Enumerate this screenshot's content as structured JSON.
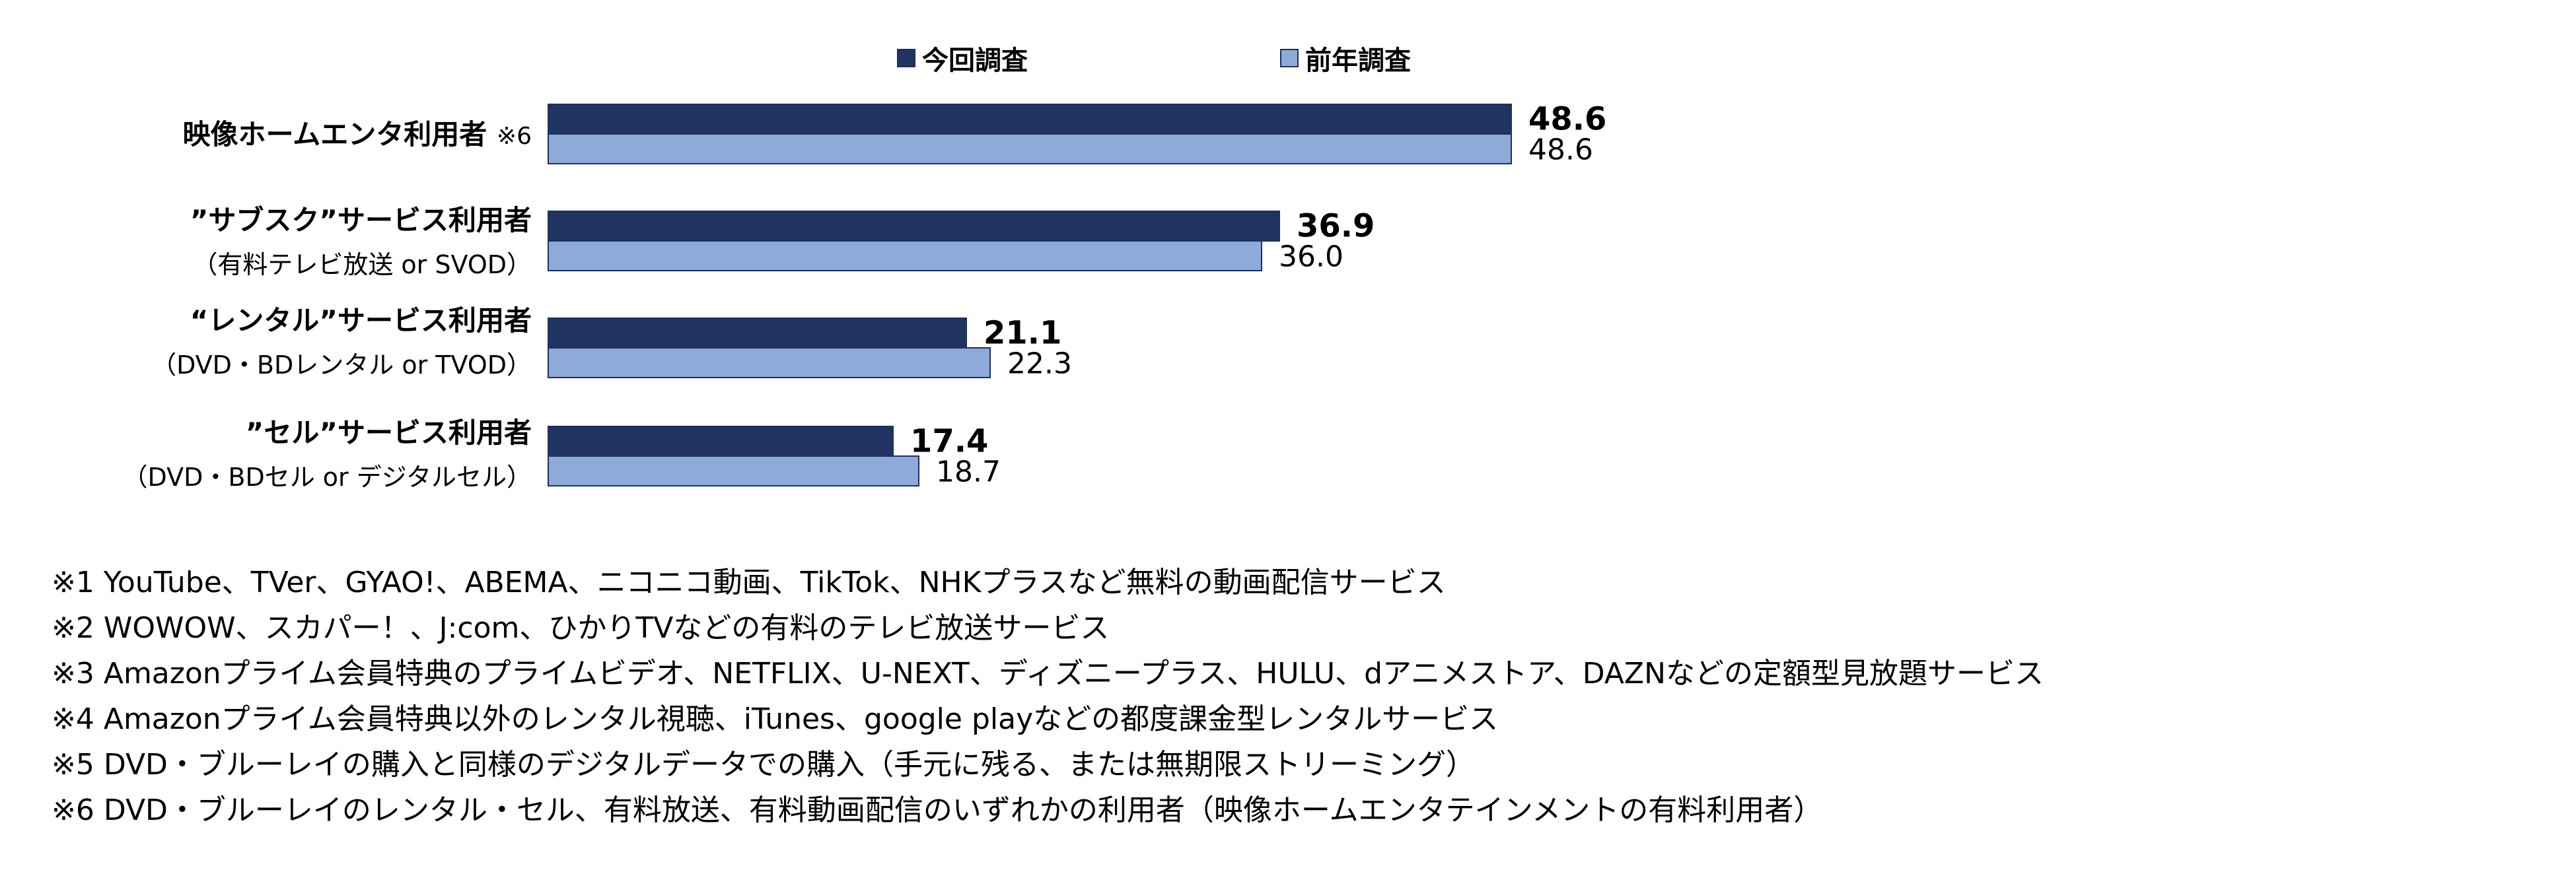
{
  "legend": {
    "current": {
      "label": "今回調査",
      "color": "#1f3461"
    },
    "previous": {
      "label": "前年調査",
      "color": "#8eaadb"
    }
  },
  "categories": [
    {
      "name": "映像ホームエンタ利用者",
      "note": "※6",
      "sub": ""
    },
    {
      "name": "”サブスク”サービス利用者",
      "note": "",
      "sub": "（有料テレビ放送 or SVOD）"
    },
    {
      "name": "“レンタル”サービス利用者",
      "note": "",
      "sub": "（DVD・BDレンタル or TVOD）"
    },
    {
      "name": "”セル”サービス利用者",
      "note": "",
      "sub": "（DVD・BDセル or デジタルセル）"
    }
  ],
  "chart_data": {
    "type": "bar",
    "orientation": "horizontal",
    "categories": [
      "映像ホームエンタ利用者",
      "”サブスク”サービス利用者",
      "“レンタル”サービス利用者",
      "”セル”サービス利用者"
    ],
    "series": [
      {
        "name": "今回調査",
        "values": [
          48.6,
          36.9,
          21.1,
          17.4
        ],
        "labels": [
          "48.6",
          "36.9",
          "21.1",
          "17.4"
        ]
      },
      {
        "name": "前年調査",
        "values": [
          48.6,
          36.0,
          22.3,
          18.7
        ],
        "labels": [
          "48.6",
          "36.0",
          "22.3",
          "18.7"
        ]
      }
    ],
    "xlim": [
      0,
      100
    ],
    "grid": false,
    "legend_position": "top"
  },
  "footnotes": [
    "※1 YouTube、TVer、GYAO!、ABEMA、ニコニコ動画、TikTok、NHKプラスなど無料の動画配信サービス",
    "※2 WOWOW、スカパー！、J:com、ひかりTVなどの有料のテレビ放送サービス",
    "※3 Amazonプライム会員特典のプライムビデオ、NETFLIX、U-NEXT、ディズニープラス、HULU、dアニメストア、DAZNなどの定額型見放題サービス",
    "※4 Amazonプライム会員特典以外のレンタル視聴、iTunes、google playなどの都度課金型レンタルサービス",
    "※5 DVD・ブルーレイの購入と同様のデジタルデータでの購入（手元に残る、または無期限ストリーミング）",
    "※6 DVD・ブルーレイのレンタル・セル、有料放送、有料動画配信のいずれかの利用者（映像ホームエンタテインメントの有料利用者）"
  ]
}
